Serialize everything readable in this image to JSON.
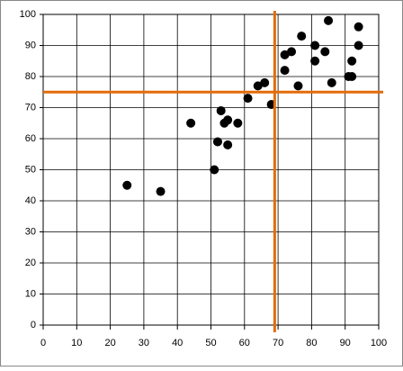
{
  "chart_data": {
    "type": "scatter",
    "x": [
      25,
      35,
      44,
      51,
      52,
      53,
      54,
      55,
      55,
      58,
      61,
      64,
      66,
      68,
      72,
      72,
      74,
      76,
      77,
      81,
      81,
      84,
      85,
      86,
      91,
      92,
      92,
      94,
      94
    ],
    "y": [
      45,
      43,
      65,
      50,
      59,
      69,
      65,
      66,
      58,
      65,
      73,
      77,
      78,
      71,
      87,
      82,
      88,
      77,
      93,
      90,
      85,
      88,
      98,
      78,
      80,
      80,
      85,
      90,
      96
    ],
    "color": "#000000",
    "xlim": [
      0,
      100
    ],
    "xticks": [
      0,
      10,
      20,
      30,
      40,
      50,
      60,
      70,
      80,
      90,
      100
    ],
    "ylim": [
      0,
      100
    ],
    "yticks": [
      0,
      10,
      20,
      30,
      40,
      50,
      60,
      70,
      80,
      90,
      100
    ],
    "grid": true,
    "reference_lines": {
      "x": 69,
      "y": 75,
      "color": "#e36c09"
    }
  }
}
